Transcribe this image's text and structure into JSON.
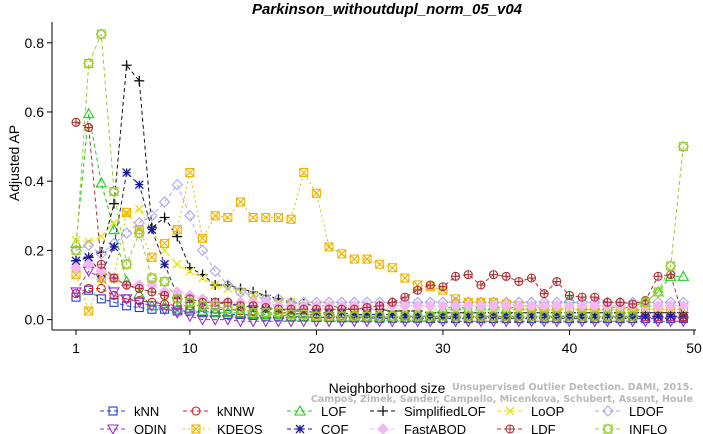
{
  "chart_data": {
    "type": "line",
    "title": "Parkinson_withoutdupl_norm_05_v04",
    "xlabel": "Neighborhood size",
    "ylabel": "Adjusted AP",
    "xlim": [
      0,
      50
    ],
    "ylim": [
      -0.03,
      0.86
    ],
    "xticks": [
      1,
      10,
      20,
      30,
      40,
      50
    ],
    "yticks": [
      0.0,
      0.2,
      0.4,
      0.6,
      0.8
    ],
    "x": [
      1,
      2,
      3,
      4,
      5,
      6,
      7,
      8,
      9,
      10,
      11,
      12,
      13,
      14,
      15,
      16,
      17,
      18,
      19,
      20,
      21,
      22,
      23,
      24,
      25,
      26,
      27,
      28,
      29,
      30,
      31,
      32,
      33,
      34,
      35,
      36,
      37,
      38,
      39,
      40,
      41,
      42,
      43,
      44,
      45,
      46,
      47,
      48,
      49
    ],
    "legend_position": "bottom",
    "series": [
      {
        "name": "kNN",
        "color": "#1f3cd6",
        "marker": "square",
        "dash": "4,3",
        "values": [
          0.065,
          0.085,
          0.06,
          0.05,
          0.04,
          0.035,
          0.03,
          0.03,
          0.025,
          0.025,
          0.02,
          0.02,
          0.015,
          0.015,
          0.012,
          0.01,
          0.01,
          0.008,
          0.008,
          0.006,
          0.006,
          0.005,
          0.005,
          0.005,
          0.004,
          0.004,
          0.004,
          0.004,
          0.003,
          0.003,
          0.003,
          0.003,
          0.003,
          0.003,
          0.003,
          0.003,
          0.003,
          0.003,
          0.003,
          0.003,
          0.003,
          0.003,
          0.003,
          0.003,
          0.003,
          0.003,
          0.003,
          0.003,
          0.003
        ]
      },
      {
        "name": "kNNW",
        "color": "#d62020",
        "marker": "circle",
        "dash": "4,3",
        "values": [
          0.075,
          0.09,
          0.09,
          0.07,
          0.06,
          0.055,
          0.05,
          0.045,
          0.04,
          0.04,
          0.035,
          0.03,
          0.03,
          0.025,
          0.025,
          0.02,
          0.02,
          0.02,
          0.015,
          0.015,
          0.015,
          0.012,
          0.012,
          0.01,
          0.01,
          0.01,
          0.01,
          0.01,
          0.01,
          0.01,
          0.008,
          0.008,
          0.008,
          0.008,
          0.008,
          0.008,
          0.008,
          0.008,
          0.008,
          0.008,
          0.008,
          0.008,
          0.008,
          0.008,
          0.008,
          0.008,
          0.008,
          0.008,
          0.008
        ]
      },
      {
        "name": "LOF",
        "color": "#22cc22",
        "marker": "triangle",
        "dash": "4,3",
        "values": [
          0.22,
          0.595,
          0.395,
          0.26,
          0.11,
          0.075,
          0.04,
          0.04,
          0.03,
          0.03,
          0.025,
          0.02,
          0.02,
          0.02,
          0.015,
          0.015,
          0.015,
          0.01,
          0.01,
          0.01,
          0.01,
          0.01,
          0.01,
          0.01,
          0.01,
          0.01,
          0.01,
          0.01,
          0.01,
          0.03,
          0.04,
          0.03,
          0.04,
          0.04,
          0.03,
          0.04,
          0.04,
          0.04,
          0.04,
          0.06,
          0.04,
          0.04,
          0.04,
          0.03,
          0.04,
          0.05,
          0.08,
          0.125,
          0.125
        ]
      },
      {
        "name": "SimplifiedLOF",
        "color": "#111111",
        "marker": "plus",
        "dash": "4,3",
        "values": [
          0.17,
          0.18,
          0.195,
          0.335,
          0.735,
          0.69,
          0.265,
          0.295,
          0.24,
          0.15,
          0.13,
          0.1,
          0.1,
          0.09,
          0.08,
          0.07,
          0.06,
          0.05,
          0.045,
          0.04,
          0.04,
          0.035,
          0.03,
          0.03,
          0.03,
          0.025,
          0.025,
          0.025,
          0.02,
          0.02,
          0.02,
          0.02,
          0.02,
          0.02,
          0.02,
          0.02,
          0.02,
          0.02,
          0.02,
          0.02,
          0.02,
          0.02,
          0.02,
          0.02,
          0.02,
          0.02,
          0.02,
          0.02,
          0.02
        ]
      },
      {
        "name": "LoOP",
        "color": "#e6e600",
        "marker": "cross",
        "dash": "4,3",
        "values": [
          0.23,
          0.225,
          0.24,
          0.28,
          0.305,
          0.32,
          0.26,
          0.2,
          0.16,
          0.14,
          0.12,
          0.1,
          0.09,
          0.08,
          0.07,
          0.06,
          0.05,
          0.05,
          0.04,
          0.04,
          0.04,
          0.035,
          0.03,
          0.03,
          0.03,
          0.03,
          0.03,
          0.03,
          0.03,
          0.03,
          0.03,
          0.03,
          0.03,
          0.03,
          0.03,
          0.03,
          0.03,
          0.03,
          0.03,
          0.03,
          0.03,
          0.03,
          0.03,
          0.03,
          0.03,
          0.03,
          0.03,
          0.03,
          0.03
        ]
      },
      {
        "name": "LDOF",
        "color": "#a8a8f0",
        "marker": "diamond",
        "dash": "4,3",
        "values": [
          0.2,
          0.215,
          0.19,
          0.22,
          0.25,
          0.28,
          0.3,
          0.34,
          0.39,
          0.3,
          0.2,
          0.14,
          0.1,
          0.08,
          0.07,
          0.06,
          0.06,
          0.05,
          0.05,
          0.05,
          0.05,
          0.05,
          0.05,
          0.05,
          0.05,
          0.05,
          0.05,
          0.05,
          0.05,
          0.05,
          0.05,
          0.05,
          0.05,
          0.05,
          0.05,
          0.05,
          0.05,
          0.05,
          0.05,
          0.05,
          0.05,
          0.05,
          0.05,
          0.05,
          0.05,
          0.05,
          0.05,
          0.05,
          0.05
        ]
      },
      {
        "name": "ODIN",
        "color": "#9933cc",
        "marker": "triangle-down",
        "dash": "4,3",
        "values": [
          0.08,
          0.14,
          0.12,
          0.08,
          0.06,
          0.05,
          0.04,
          0.03,
          0.02,
          0.01,
          0.0,
          0.0,
          0.0,
          -0.005,
          -0.005,
          -0.005,
          -0.005,
          -0.005,
          -0.005,
          -0.005,
          -0.005,
          -0.005,
          -0.005,
          -0.005,
          -0.005,
          -0.005,
          -0.005,
          -0.005,
          -0.005,
          -0.005,
          -0.005,
          -0.005,
          -0.005,
          -0.005,
          -0.005,
          -0.005,
          -0.005,
          -0.005,
          -0.005,
          -0.005,
          -0.005,
          -0.005,
          -0.005,
          -0.005,
          -0.005,
          -0.005,
          -0.005,
          -0.005,
          -0.005
        ]
      },
      {
        "name": "KDEOS",
        "color": "#f0b400",
        "marker": "square-x",
        "dash": "2,3",
        "values": [
          0.13,
          0.025,
          0.12,
          0.12,
          0.31,
          0.26,
          0.18,
          0.22,
          0.26,
          0.425,
          0.235,
          0.3,
          0.295,
          0.34,
          0.295,
          0.295,
          0.295,
          0.29,
          0.425,
          0.365,
          0.21,
          0.19,
          0.175,
          0.175,
          0.16,
          0.15,
          0.12,
          0.1,
          0.095,
          0.085,
          0.06,
          0.05,
          0.05,
          0.05,
          0.045,
          0.04,
          0.035,
          0.035,
          0.035,
          0.03,
          0.03,
          0.03,
          0.03,
          0.03,
          0.03,
          0.03,
          0.03,
          0.03,
          0.03
        ]
      },
      {
        "name": "COF",
        "color": "#1a1a99",
        "marker": "asterisk",
        "dash": "4,3",
        "values": [
          0.17,
          0.18,
          0.135,
          0.21,
          0.425,
          0.39,
          0.26,
          0.16,
          0.07,
          0.06,
          0.05,
          0.05,
          0.045,
          0.04,
          0.035,
          0.03,
          0.03,
          0.025,
          0.025,
          0.02,
          0.02,
          0.02,
          0.015,
          0.015,
          0.015,
          0.015,
          0.01,
          0.01,
          0.01,
          0.01,
          0.01,
          0.01,
          0.01,
          0.01,
          0.01,
          0.01,
          0.01,
          0.01,
          0.01,
          0.01,
          0.01,
          0.01,
          0.01,
          0.01,
          0.01,
          0.01,
          0.01,
          0.01,
          0.01
        ]
      },
      {
        "name": "FastABOD",
        "color": "#f5b6f5",
        "marker": "diamond-filled",
        "dash": "4,3",
        "values": [
          0.15,
          0.16,
          0.14,
          0.12,
          0.1,
          0.1,
          0.1,
          0.08,
          0.08,
          0.07,
          0.06,
          0.05,
          0.05,
          0.05,
          0.05,
          0.05,
          0.04,
          0.04,
          0.04,
          0.04,
          0.04,
          0.04,
          0.04,
          0.04,
          0.04,
          0.04,
          0.04,
          0.04,
          0.04,
          0.04,
          0.04,
          0.04,
          0.04,
          0.04,
          0.04,
          0.04,
          0.04,
          0.04,
          0.04,
          0.04,
          0.04,
          0.04,
          0.04,
          0.04,
          0.04,
          0.04,
          0.04,
          0.04,
          0.04
        ]
      },
      {
        "name": "LDF",
        "color": "#b03030",
        "marker": "circle-plus",
        "dash": "4,3",
        "values": [
          0.57,
          0.555,
          0.16,
          0.12,
          0.1,
          0.09,
          0.08,
          0.07,
          0.06,
          0.06,
          0.05,
          0.05,
          0.05,
          0.04,
          0.04,
          0.035,
          0.03,
          0.03,
          0.03,
          0.03,
          0.03,
          0.03,
          0.03,
          0.035,
          0.04,
          0.05,
          0.065,
          0.085,
          0.1,
          0.095,
          0.125,
          0.13,
          0.1,
          0.13,
          0.125,
          0.11,
          0.12,
          0.075,
          0.11,
          0.07,
          0.065,
          0.065,
          0.05,
          0.05,
          0.045,
          0.055,
          0.125,
          0.13,
          0.005
        ]
      },
      {
        "name": "INFLO",
        "color": "#99cc33",
        "marker": "star",
        "dash": "4,3",
        "values": [
          0.2,
          0.74,
          0.825,
          0.37,
          0.16,
          0.25,
          0.12,
          0.11,
          0.06,
          0.05,
          0.04,
          0.04,
          0.03,
          0.03,
          0.02,
          0.02,
          0.02,
          0.015,
          0.015,
          0.01,
          0.01,
          0.01,
          0.01,
          0.01,
          0.01,
          0.01,
          0.01,
          0.01,
          0.01,
          0.01,
          0.01,
          0.01,
          0.01,
          0.01,
          0.01,
          0.01,
          0.01,
          0.01,
          0.01,
          0.01,
          0.01,
          0.01,
          0.01,
          0.01,
          0.01,
          0.05,
          0.08,
          0.155,
          0.5
        ]
      }
    ]
  },
  "watermark": {
    "line1": "Unsupervised Outlier Detection. DAMI, 2015.",
    "line2": "Campos, Zimek, Sander, Campello, Micenkova, Schubert, Assent, Houle"
  }
}
